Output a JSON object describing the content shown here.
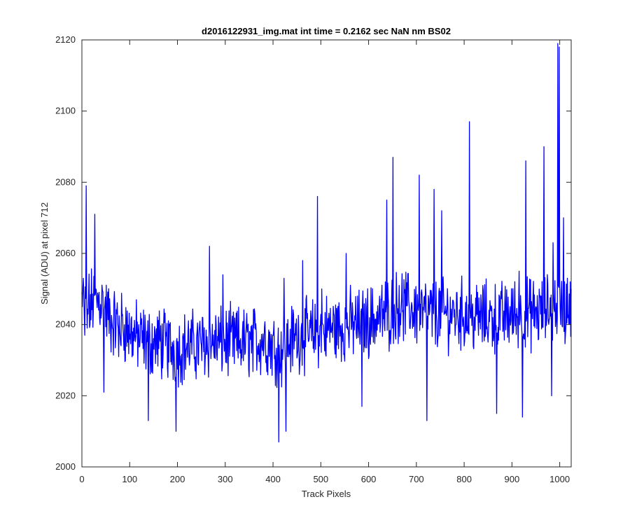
{
  "chart_data": {
    "type": "line",
    "title": "d2016122931_img.mat int time = 0.2162 sec  NaN nm BS02",
    "xlabel": "Track Pixels",
    "ylabel": "Signal (ADU) at pixel 712",
    "xlim": [
      0,
      1024
    ],
    "ylim": [
      2000,
      2120
    ],
    "xticks": [
      0,
      100,
      200,
      300,
      400,
      500,
      600,
      700,
      800,
      900,
      1000
    ],
    "yticks": [
      2000,
      2020,
      2040,
      2060,
      2080,
      2100,
      2120
    ],
    "grid": false,
    "legend": "none",
    "line_color": "#0000ff",
    "x": [
      0,
      20,
      40,
      60,
      80,
      100,
      120,
      140,
      160,
      180,
      200,
      220,
      240,
      260,
      280,
      300,
      320,
      340,
      360,
      380,
      400,
      420,
      440,
      460,
      480,
      500,
      520,
      540,
      560,
      580,
      600,
      620,
      640,
      660,
      680,
      700,
      720,
      740,
      760,
      780,
      800,
      820,
      840,
      860,
      880,
      900,
      920,
      940,
      960,
      980,
      1000,
      1020
    ],
    "values": [
      2044,
      2046,
      2047,
      2041,
      2040,
      2038,
      2036,
      2035,
      2035,
      2034,
      2033,
      2034,
      2034,
      2035,
      2035,
      2035,
      2035,
      2035,
      2035,
      2036,
      2034,
      2033,
      2036,
      2037,
      2037,
      2038,
      2039,
      2039,
      2040,
      2040,
      2041,
      2042,
      2043,
      2045,
      2045,
      2044,
      2043,
      2043,
      2043,
      2043,
      2043,
      2042,
      2042,
      2042,
      2042,
      2043,
      2043,
      2043,
      2043,
      2045,
      2045,
      2044
    ],
    "series": [
      {
        "x": [
          0,
          3,
          6,
          9,
          11,
          14,
          17,
          27,
          46,
          77,
          108,
          139,
          197,
          267,
          295,
          355,
          412,
          423,
          427,
          462,
          493,
          502,
          507,
          553,
          586,
          638,
          651,
          664,
          706,
          722,
          737,
          753,
          811,
          868,
          915,
          920,
          922,
          929,
          961,
          967,
          983,
          986,
          993,
          996,
          999,
          1000,
          1002,
          1008,
          1013,
          1016,
          1022,
          1024
        ],
        "values": [
          2049,
          2053,
          2037,
          2079,
          2039,
          2048,
          2040,
          2071,
          2021,
          2031,
          2039,
          2013,
          2010,
          2062,
          2054,
          2032,
          2007,
          2053,
          2010,
          2058,
          2076,
          2050,
          2037,
          2060,
          2017,
          2075,
          2087,
          2051,
          2082,
          2013,
          2078,
          2072,
          2097,
          2015,
          2055,
          2040,
          2014,
          2086,
          2048,
          2090,
          2020,
          2063,
          2046,
          2119,
          2118,
          2052,
          2040,
          2070,
          2040,
          2053,
          2052,
          2050
        ],
        "style": "noisy",
        "noise_amplitude": 8
      }
    ]
  }
}
